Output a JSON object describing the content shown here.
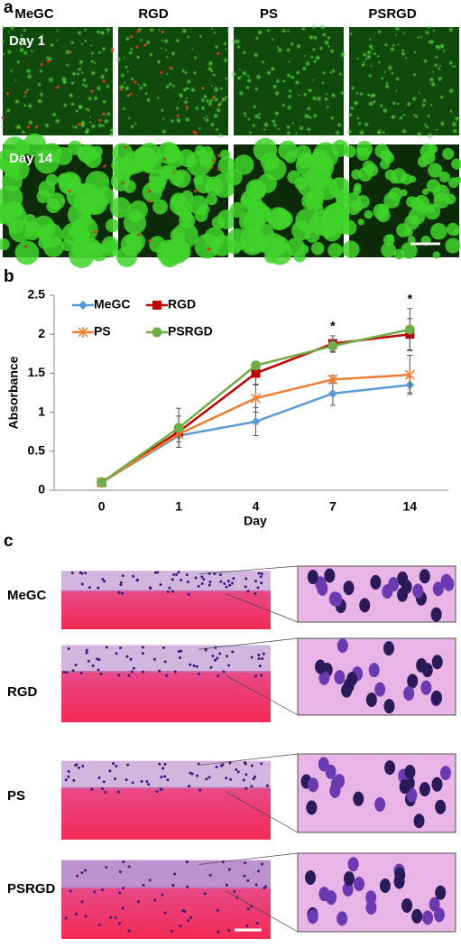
{
  "panel_a": {
    "label": "a",
    "columns": [
      "MeGC",
      "RGD",
      "PS",
      "PSRGD"
    ],
    "rows": [
      "Day 1",
      "Day 14"
    ]
  },
  "chart_data": {
    "label": "b",
    "type": "line",
    "xlabel": "Day",
    "ylabel": "Absorbance",
    "categories": [
      "0",
      "1",
      "4",
      "7",
      "14"
    ],
    "ylim": [
      0,
      2.5
    ],
    "yticks": [
      0,
      0.5,
      1,
      1.5,
      2,
      2.5
    ],
    "series": [
      {
        "name": "MeGC",
        "color": "#5b9bd5",
        "marker": "diamond",
        "values": [
          0.1,
          0.7,
          0.88,
          1.24,
          1.35
        ],
        "errors": [
          0.02,
          0.15,
          0.18,
          0.15,
          0.1
        ]
      },
      {
        "name": "RGD",
        "color": "#c00000",
        "marker": "square",
        "values": [
          0.1,
          0.75,
          1.5,
          1.88,
          2.0
        ],
        "errors": [
          0.02,
          0.2,
          0.15,
          0.1,
          0.2
        ]
      },
      {
        "name": "PS",
        "color": "#ed7d31",
        "marker": "star",
        "values": [
          0.1,
          0.72,
          1.18,
          1.42,
          1.48
        ],
        "errors": [
          0.02,
          0.1,
          0.18,
          0.05,
          0.25
        ]
      },
      {
        "name": "PSRGD",
        "color": "#70ad47",
        "marker": "circle",
        "values": [
          0.1,
          0.8,
          1.6,
          1.85,
          2.06
        ],
        "errors": [
          0.02,
          0.25,
          0.05,
          0.08,
          0.27
        ]
      }
    ],
    "annotations": [
      {
        "text": "*",
        "x": "7"
      },
      {
        "text": "*",
        "x": "14"
      }
    ]
  },
  "panel_c": {
    "label": "c",
    "rows": [
      "MeGC",
      "RGD",
      "PS",
      "PSRGD"
    ]
  }
}
